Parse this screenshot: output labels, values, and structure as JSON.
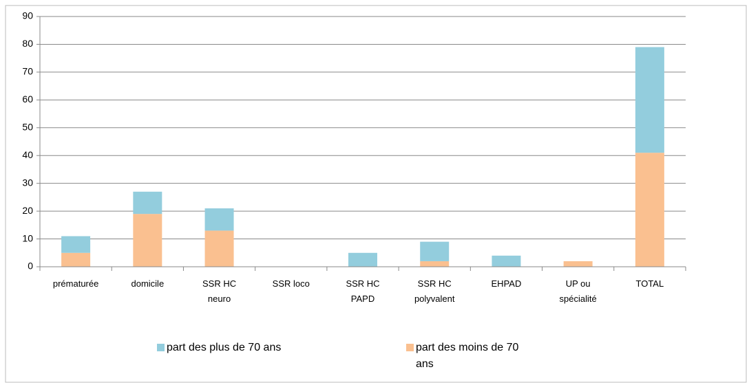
{
  "chart_data": {
    "type": "stacked_bar",
    "categories": [
      "prématurée",
      "domicile",
      "SSR HC neuro",
      "SSR loco",
      "SSR HC PAPD",
      "SSR HC polyvalent",
      "EHPAD",
      "UP ou spécialité",
      "TOTAL"
    ],
    "series": [
      {
        "name": "part des plus de 70 ans",
        "color": "#93cddd",
        "values": [
          6,
          8,
          8,
          0,
          5,
          7,
          4,
          0,
          38
        ]
      },
      {
        "name": "part des moins de 70 ans",
        "color": "#fac090",
        "values": [
          5,
          19,
          13,
          0,
          0,
          2,
          0,
          2,
          41
        ]
      }
    ],
    "stack_order": "bottom-up-reverse",
    "ylim": [
      0,
      90
    ],
    "yticks": [
      0,
      10,
      20,
      30,
      40,
      50,
      60,
      70,
      80,
      90
    ],
    "grid": true,
    "legend": "bottom"
  }
}
